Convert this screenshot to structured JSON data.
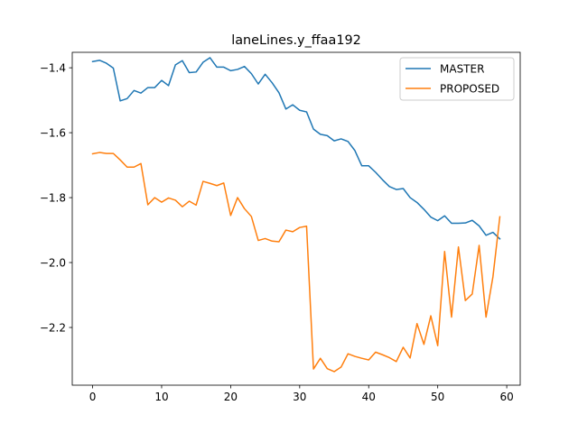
{
  "chart_data": {
    "type": "line",
    "title": "laneLines.y_ffaa192",
    "xlabel": "",
    "ylabel": "",
    "xlim": [
      -2.95,
      61.95
    ],
    "ylim": [
      -2.3778,
      -1.3524
    ],
    "xticks": [
      0,
      10,
      20,
      30,
      40,
      50,
      60
    ],
    "xtick_labels": [
      "0",
      "10",
      "20",
      "30",
      "40",
      "50",
      "60"
    ],
    "yticks": [
      -1.4,
      -1.6,
      -1.8,
      -2.0,
      -2.2
    ],
    "ytick_labels": [
      "−1.4",
      "−1.6",
      "−1.8",
      "−2.0",
      "−2.2"
    ],
    "grid": false,
    "legend_position": "top-right",
    "x": [
      0,
      1,
      2,
      3,
      4,
      5,
      6,
      7,
      8,
      9,
      10,
      11,
      12,
      13,
      14,
      15,
      16,
      17,
      18,
      19,
      20,
      21,
      22,
      23,
      24,
      25,
      26,
      27,
      28,
      29,
      30,
      31,
      32,
      33,
      34,
      35,
      36,
      37,
      38,
      39,
      40,
      41,
      42,
      43,
      44,
      45,
      46,
      47,
      48,
      49,
      50,
      51,
      52,
      53,
      54,
      55,
      56,
      57,
      58,
      59
    ],
    "series": [
      {
        "name": "MASTER",
        "color": "#1f77b4",
        "values": [
          -1.381,
          -1.377,
          -1.386,
          -1.401,
          -1.502,
          -1.495,
          -1.47,
          -1.478,
          -1.461,
          -1.461,
          -1.439,
          -1.455,
          -1.391,
          -1.378,
          -1.415,
          -1.413,
          -1.383,
          -1.369,
          -1.398,
          -1.398,
          -1.409,
          -1.405,
          -1.396,
          -1.418,
          -1.45,
          -1.42,
          -1.446,
          -1.477,
          -1.527,
          -1.514,
          -1.531,
          -1.536,
          -1.589,
          -1.605,
          -1.609,
          -1.625,
          -1.619,
          -1.627,
          -1.655,
          -1.702,
          -1.702,
          -1.722,
          -1.745,
          -1.766,
          -1.775,
          -1.772,
          -1.8,
          -1.815,
          -1.836,
          -1.86,
          -1.871,
          -1.856,
          -1.879,
          -1.879,
          -1.878,
          -1.87,
          -1.887,
          -1.916,
          -1.907,
          -1.927
        ]
      },
      {
        "name": "PROPOSED",
        "color": "#ff7f0e",
        "values": [
          -1.665,
          -1.661,
          -1.664,
          -1.664,
          -1.684,
          -1.706,
          -1.706,
          -1.695,
          -1.822,
          -1.8,
          -1.814,
          -1.801,
          -1.808,
          -1.828,
          -1.811,
          -1.823,
          -1.75,
          -1.756,
          -1.763,
          -1.755,
          -1.855,
          -1.8,
          -1.834,
          -1.858,
          -1.932,
          -1.926,
          -1.934,
          -1.936,
          -1.9,
          -1.905,
          -1.892,
          -1.888,
          -2.328,
          -2.295,
          -2.327,
          -2.336,
          -2.322,
          -2.281,
          -2.289,
          -2.295,
          -2.3,
          -2.276,
          -2.284,
          -2.293,
          -2.305,
          -2.261,
          -2.294,
          -2.188,
          -2.252,
          -2.164,
          -2.256,
          -1.966,
          -2.168,
          -1.952,
          -2.117,
          -2.097,
          -1.947,
          -2.168,
          -2.044,
          -1.859
        ]
      }
    ]
  }
}
